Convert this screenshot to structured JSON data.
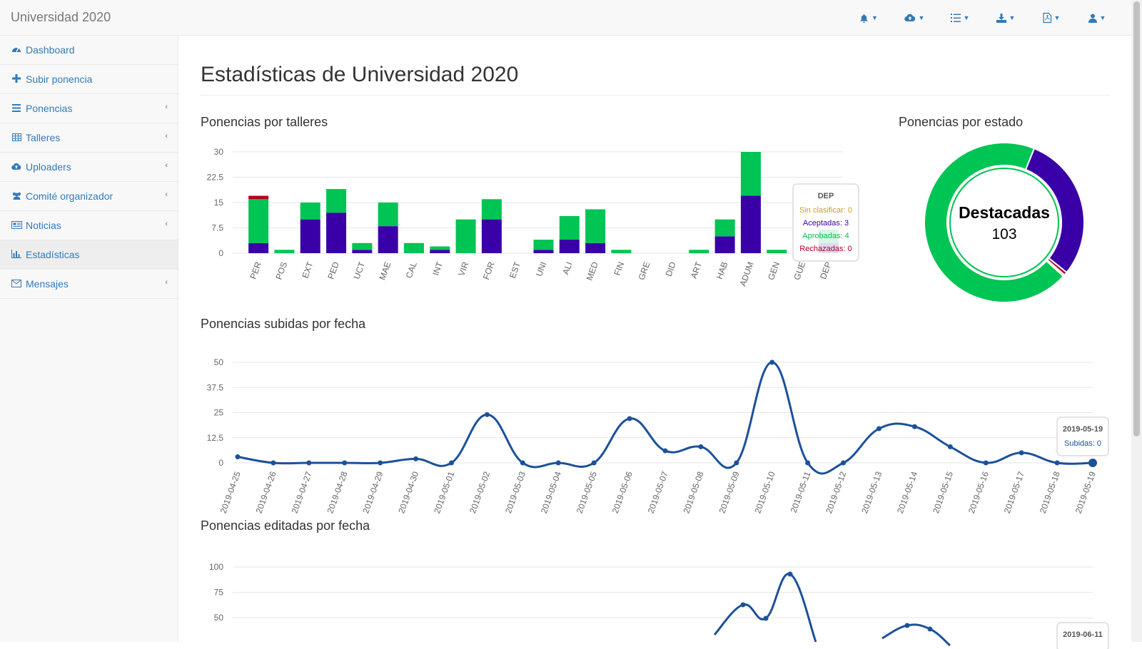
{
  "app": {
    "brand": "Universidad 2020"
  },
  "navbar": {
    "icons": [
      "bell-icon",
      "cloud-upload-icon",
      "list-icon",
      "download-icon",
      "file-pdf-icon",
      "user-icon"
    ]
  },
  "sidebar": {
    "items": [
      {
        "label": "Dashboard",
        "icon": "dashboard-icon",
        "submenu": false,
        "active": false
      },
      {
        "label": "Subir ponencia",
        "icon": "plus-icon",
        "submenu": false,
        "active": false
      },
      {
        "label": "Ponencias",
        "icon": "bars-icon",
        "submenu": true,
        "active": false
      },
      {
        "label": "Talleres",
        "icon": "table-icon",
        "submenu": true,
        "active": false
      },
      {
        "label": "Uploaders",
        "icon": "cloud-upload-icon",
        "submenu": true,
        "active": false
      },
      {
        "label": "Comité organizador",
        "icon": "users-icon",
        "submenu": true,
        "active": false
      },
      {
        "label": "Noticias",
        "icon": "newspaper-icon",
        "submenu": true,
        "active": false
      },
      {
        "label": "Estadísticas",
        "icon": "bar-chart-icon",
        "submenu": false,
        "active": true
      },
      {
        "label": "Mensajes",
        "icon": "envelope-icon",
        "submenu": true,
        "active": false
      }
    ]
  },
  "page": {
    "title": "Estadísticas de Universidad 2020"
  },
  "colors": {
    "sin_clasificar": "#c5a028",
    "aceptadas": "#3a00a8",
    "aprobadas": "#00c453",
    "rechazadas": "#b0001e",
    "line": "#1c5199",
    "link": "#337ab7"
  },
  "chart_data": [
    {
      "type": "bar",
      "title": "Ponencias por talleres",
      "stacked": true,
      "categories": [
        "PER",
        "POS",
        "EXT",
        "PED",
        "UCT",
        "MAE",
        "CAL",
        "INT",
        "VIR",
        "FOR",
        "EST",
        "UNI",
        "ALI",
        "MED",
        "FIN",
        "GRE",
        "DID",
        "ART",
        "HAB",
        "ADUM",
        "GEN",
        "GUE",
        "DEP"
      ],
      "series": [
        {
          "name": "Sin clasificar",
          "values": [
            0,
            0,
            0,
            0,
            0,
            0,
            0,
            0,
            0,
            0,
            0,
            0,
            0,
            0,
            0,
            0,
            0,
            0,
            0,
            0,
            0,
            0,
            0
          ]
        },
        {
          "name": "Aceptadas",
          "values": [
            3,
            0,
            10,
            12,
            1,
            8,
            0,
            1,
            0,
            10,
            0,
            1,
            4,
            3,
            0,
            0,
            0,
            0,
            5,
            17,
            0,
            0,
            3
          ]
        },
        {
          "name": "Aprobadas",
          "values": [
            13,
            1,
            5,
            7,
            2,
            7,
            3,
            1,
            10,
            6,
            0,
            3,
            7,
            10,
            1,
            0,
            0,
            1,
            5,
            13,
            1,
            0,
            4
          ]
        },
        {
          "name": "Rechazadas",
          "values": [
            1,
            0,
            0,
            0,
            0,
            0,
            0,
            0,
            0,
            0,
            0,
            0,
            0,
            0,
            0,
            0,
            0,
            0,
            0,
            0,
            0,
            0,
            0
          ]
        }
      ],
      "yticks": [
        "30",
        "22.5",
        "15",
        "7.5",
        "0"
      ],
      "ylim": [
        0,
        30
      ],
      "tooltip": {
        "title": "DEP",
        "lines": [
          "Sin clasificar: 0",
          "Aceptadas: 3",
          "Aprobadas: 4",
          "Rechazadas: 0"
        ]
      }
    },
    {
      "type": "pie",
      "title": "Ponencias por estado",
      "donut": true,
      "slices": [
        {
          "name": "Aceptadas",
          "value": 44
        },
        {
          "name": "Rechazadas",
          "value": 1
        },
        {
          "name": "Sin clasificar",
          "value": 0.5
        },
        {
          "name": "Aprobadas",
          "value": 103
        }
      ],
      "center_label": "Destacadas",
      "center_value": "103"
    },
    {
      "type": "line",
      "title": "Ponencias subidas por fecha",
      "x": [
        "2019-04-25",
        "2019-04-26",
        "2019-04-27",
        "2019-04-28",
        "2019-04-29",
        "2019-04-30",
        "2019-05-01",
        "2019-05-02",
        "2019-05-03",
        "2019-05-04",
        "2019-05-05",
        "2019-05-06",
        "2019-05-07",
        "2019-05-08",
        "2019-05-09",
        "2019-05-10",
        "2019-05-11",
        "2019-05-12",
        "2019-05-13",
        "2019-05-14",
        "2019-05-15",
        "2019-05-16",
        "2019-05-17",
        "2019-05-18",
        "2019-05-19"
      ],
      "series": [
        {
          "name": "Subidas",
          "values": [
            3,
            0,
            0,
            0,
            0,
            2,
            0,
            24,
            0,
            0,
            0,
            22,
            6,
            8,
            0,
            50,
            0,
            0,
            17,
            18,
            8,
            0,
            5,
            0,
            0
          ]
        }
      ],
      "yticks": [
        "50",
        "37.5",
        "25",
        "12.5",
        "0"
      ],
      "ylim": [
        0,
        50
      ],
      "tooltip": {
        "title": "2019-05-19",
        "lines": [
          "Subidas: 0"
        ]
      }
    },
    {
      "type": "line",
      "title": "Ponencias editadas por fecha",
      "yticks": [
        "100",
        "75",
        "50"
      ],
      "ylim": [
        25,
        100
      ],
      "tooltip": {
        "title": "2019-06-11"
      }
    }
  ]
}
